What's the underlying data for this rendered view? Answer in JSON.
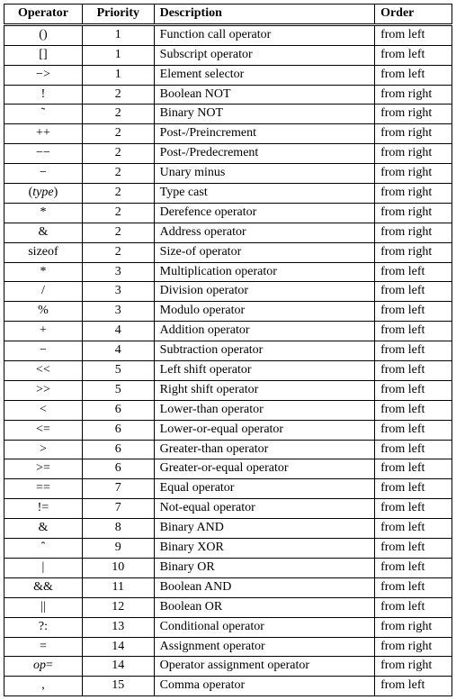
{
  "headers": [
    "Operator",
    "Priority",
    "Description",
    "Order"
  ],
  "rows": [
    [
      "()",
      "1",
      "Function call operator",
      "from left"
    ],
    [
      "[]",
      "1",
      "Subscript operator",
      "from left"
    ],
    [
      "−>",
      "1",
      "Element selector",
      "from left"
    ],
    [
      "!",
      "2",
      "Boolean NOT",
      "from right"
    ],
    [
      "˜",
      "2",
      "Binary NOT",
      "from right"
    ],
    [
      "++",
      "2",
      "Post-/Preincrement",
      "from right"
    ],
    [
      "−−",
      "2",
      "Post-/Predecrement",
      "from right"
    ],
    [
      "−",
      "2",
      "Unary minus",
      "from right"
    ],
    [
      "(<i>type</i>)",
      "2",
      "Type cast",
      "from right"
    ],
    [
      "*",
      "2",
      "Derefence operator",
      "from right"
    ],
    [
      "&",
      "2",
      "Address operator",
      "from right"
    ],
    [
      "sizeof",
      "2",
      "Size-of operator",
      "from right"
    ],
    [
      "*",
      "3",
      "Multiplication operator",
      "from left"
    ],
    [
      "/",
      "3",
      "Division operator",
      "from left"
    ],
    [
      "%",
      "3",
      "Modulo operator",
      "from left"
    ],
    [
      "+",
      "4",
      "Addition operator",
      "from left"
    ],
    [
      "−",
      "4",
      "Subtraction operator",
      "from left"
    ],
    [
      "<<",
      "5",
      "Left shift operator",
      "from left"
    ],
    [
      ">>",
      "5",
      "Right shift operator",
      "from left"
    ],
    [
      "<",
      "6",
      "Lower-than operator",
      "from left"
    ],
    [
      "<=",
      "6",
      "Lower-or-equal operator",
      "from left"
    ],
    [
      ">",
      "6",
      "Greater-than operator",
      "from left"
    ],
    [
      ">=",
      "6",
      "Greater-or-equal operator",
      "from left"
    ],
    [
      "==",
      "7",
      "Equal operator",
      "from left"
    ],
    [
      "!=",
      "7",
      "Not-equal operator",
      "from left"
    ],
    [
      "&",
      "8",
      "Binary AND",
      "from left"
    ],
    [
      "ˆ",
      "9",
      "Binary XOR",
      "from left"
    ],
    [
      "|",
      "10",
      "Binary OR",
      "from left"
    ],
    [
      "&&",
      "11",
      "Boolean AND",
      "from left"
    ],
    [
      "||",
      "12",
      "Boolean OR",
      "from left"
    ],
    [
      "?:",
      "13",
      "Conditional operator",
      "from right"
    ],
    [
      "=",
      "14",
      "Assignment operator",
      "from right"
    ],
    [
      "<i>op</i>=",
      "14",
      "Operator assignment operator",
      "from right"
    ],
    [
      ",",
      "15",
      "Comma operator",
      "from left"
    ]
  ],
  "col_align": [
    "c",
    "c",
    "l",
    "l"
  ],
  "col_widths": [
    "85px",
    "78px",
    "240px",
    "84px"
  ]
}
